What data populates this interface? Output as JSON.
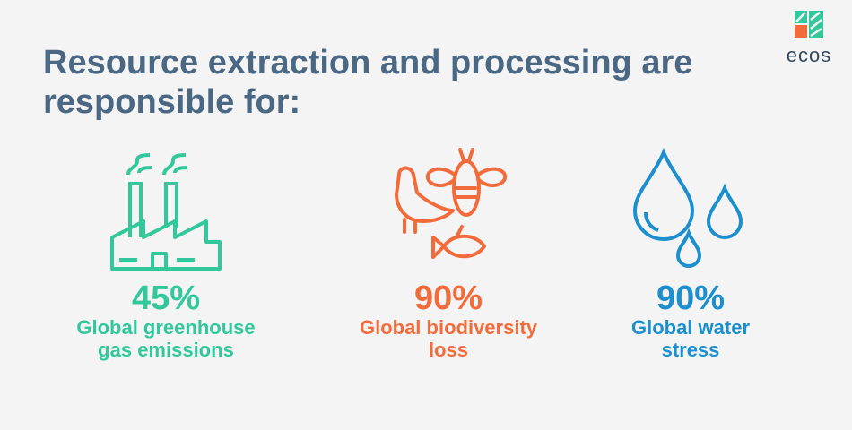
{
  "header": {
    "title": "Resource extraction and processing are responsible for:",
    "logo": "ecos"
  },
  "stats": [
    {
      "value": "45%",
      "label": "Global greenhouse gas emissions"
    },
    {
      "value": "90%",
      "label": "Global biodiversity loss"
    },
    {
      "value": "90%",
      "label": "Global water stress"
    }
  ]
}
